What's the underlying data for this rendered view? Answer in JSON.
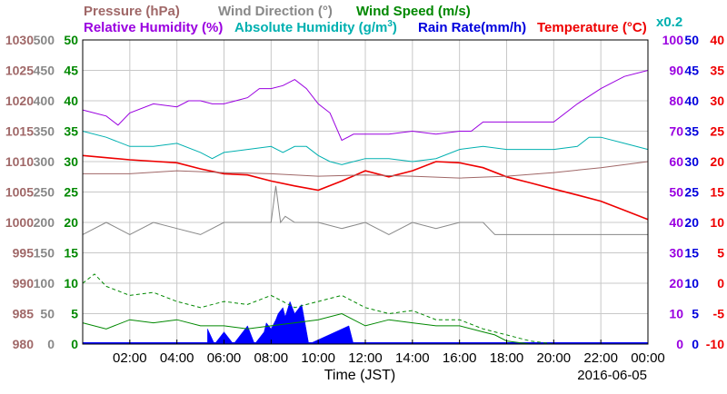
{
  "chart_data": {
    "type": "line",
    "xlabel": "Time (JST)",
    "date_label": "2016-06-05",
    "x_ticks": [
      "02:00",
      "04:00",
      "06:00",
      "08:00",
      "10:00",
      "12:00",
      "14:00",
      "16:00",
      "18:00",
      "20:00",
      "22:00",
      "00:00"
    ],
    "x_range_hours": [
      0,
      24
    ],
    "grid": true,
    "header": {
      "pressure": "Pressure (hPa)",
      "wind_direction": "Wind Direction (°)",
      "wind_speed": "Wind Speed (m/s)",
      "relative_humidity": "Relative Humidity (%)",
      "absolute_humidity_pre": "Absolute Humidity (g/m",
      "absolute_humidity_sup": "3",
      "absolute_humidity_post": ")",
      "rain_rate": "Rain Rate(mm/h)",
      "temperature": "Temperature (°C)",
      "scale_note": "x0.2"
    },
    "axes": {
      "pressure": {
        "color": "#a06868",
        "ticks": [
          "1030",
          "1025",
          "1020",
          "1015",
          "1010",
          "1005",
          "1000",
          "995",
          "990",
          "985",
          "980"
        ],
        "range": [
          980,
          1030
        ]
      },
      "wind_direction": {
        "color": "#888888",
        "ticks": [
          "500",
          "450",
          "400",
          "350",
          "300",
          "250",
          "200",
          "150",
          "100",
          "50",
          "0"
        ],
        "range": [
          0,
          500
        ]
      },
      "wind_speed": {
        "color": "#008800",
        "ticks": [
          "50",
          "45",
          "40",
          "35",
          "30",
          "25",
          "20",
          "15",
          "10",
          "5",
          "0"
        ],
        "range": [
          0,
          50
        ]
      },
      "relative_humidity": {
        "color": "#9a00e0",
        "ticks": [
          "100",
          "90",
          "80",
          "70",
          "60",
          "50",
          "40",
          "30",
          "20",
          "10",
          "0"
        ],
        "range": [
          0,
          100
        ]
      },
      "rain_rate": {
        "color": "#0000dd",
        "ticks": [
          "50",
          "45",
          "40",
          "35",
          "30",
          "25",
          "20",
          "15",
          "10",
          "5",
          "0"
        ],
        "range": [
          0,
          50
        ]
      },
      "temperature": {
        "color": "#ee0000",
        "ticks": [
          "40",
          "35",
          "30",
          "25",
          "20",
          "15",
          "10",
          "5",
          "0",
          "-5",
          "-10"
        ],
        "range": [
          -10,
          40
        ]
      }
    },
    "colors": {
      "pressure": "#a06868",
      "wind_direction": "#888888",
      "wind_speed": "#008800",
      "relative_humidity": "#9a00e0",
      "absolute_humidity": "#00b0b0",
      "rain_rate": "#0000ff",
      "temperature": "#ee0000"
    },
    "series": [
      {
        "name": "Relative Humidity (%)",
        "key": "relative_humidity",
        "style": "line",
        "x": [
          0.0,
          1.0,
          1.5,
          2.0,
          3.0,
          4.0,
          4.5,
          5.0,
          5.5,
          6.0,
          7.0,
          7.5,
          8.0,
          8.5,
          9.0,
          9.5,
          10.0,
          10.5,
          11.0,
          11.5,
          12.0,
          13.0,
          14.0,
          15.0,
          16.0,
          16.5,
          17.0,
          18.0,
          19.0,
          20.0,
          21.0,
          22.0,
          23.0,
          24.0
        ],
        "y": [
          77,
          75,
          72,
          76,
          79,
          78,
          80,
          80,
          79,
          79,
          81,
          84,
          84,
          85,
          87,
          84,
          79,
          76,
          67,
          69,
          69,
          69,
          70,
          69,
          70,
          70,
          73,
          73,
          73,
          73,
          79,
          84,
          88,
          90
        ]
      },
      {
        "name": "Absolute Humidity (g/m3)",
        "key": "absolute_humidity",
        "style": "line",
        "scale": 0.2,
        "scale_axis": "relative_humidity",
        "x": [
          0.0,
          1.0,
          2.0,
          3.0,
          4.0,
          5.0,
          5.5,
          6.0,
          7.0,
          8.0,
          8.5,
          9.0,
          9.5,
          10.0,
          10.5,
          11.0,
          12.0,
          13.0,
          14.0,
          15.0,
          16.0,
          17.0,
          18.0,
          19.0,
          20.0,
          21.0,
          21.5,
          22.0,
          23.0,
          24.0
        ],
        "y": [
          70,
          68,
          65,
          65,
          66,
          63,
          61,
          63,
          64,
          65,
          63,
          65,
          65,
          62,
          60,
          59,
          61,
          61,
          60,
          61,
          64,
          65,
          64,
          64,
          64,
          65,
          68,
          68,
          66,
          64
        ]
      },
      {
        "name": "Temperature (°C)",
        "key": "temperature",
        "style": "line",
        "x": [
          0.0,
          2.0,
          4.0,
          5.0,
          6.0,
          7.0,
          8.0,
          9.0,
          10.0,
          11.0,
          12.0,
          13.0,
          14.0,
          15.0,
          16.0,
          17.0,
          18.0,
          19.0,
          20.0,
          21.0,
          22.0,
          23.0,
          24.0
        ],
        "y": [
          21.0,
          20.3,
          19.8,
          18.8,
          18.0,
          17.8,
          16.8,
          16.0,
          15.3,
          16.8,
          18.5,
          17.5,
          18.5,
          20.0,
          19.8,
          19.0,
          17.5,
          16.5,
          15.5,
          14.5,
          13.5,
          12.0,
          10.5
        ]
      },
      {
        "name": "Pressure (hPa)",
        "key": "pressure",
        "style": "line",
        "x": [
          0.0,
          2.0,
          4.0,
          6.0,
          8.0,
          10.0,
          12.0,
          14.0,
          16.0,
          18.0,
          20.0,
          22.0,
          24.0
        ],
        "y": [
          1008.0,
          1008.0,
          1008.5,
          1008.2,
          1008.0,
          1007.6,
          1007.8,
          1007.6,
          1007.3,
          1007.6,
          1008.2,
          1009.0,
          1010.0
        ]
      },
      {
        "name": "Wind Direction (°)",
        "key": "wind_direction",
        "style": "line",
        "x": [
          0.0,
          1.0,
          2.0,
          3.0,
          4.0,
          5.0,
          6.0,
          7.0,
          8.0,
          8.2,
          8.4,
          8.6,
          9.0,
          10.0,
          11.0,
          12.0,
          13.0,
          14.0,
          15.0,
          16.0,
          17.0,
          17.5,
          18.0,
          20.0,
          22.0,
          24.0
        ],
        "y": [
          180,
          200,
          180,
          200,
          190,
          180,
          200,
          200,
          200,
          260,
          200,
          210,
          200,
          200,
          190,
          200,
          180,
          200,
          190,
          200,
          200,
          180,
          180,
          180,
          180,
          180
        ]
      },
      {
        "name": "Wind Speed (m/s)",
        "key": "wind_speed",
        "style": "line",
        "x": [
          0.0,
          1.0,
          2.0,
          3.0,
          4.0,
          5.0,
          6.0,
          7.0,
          8.0,
          9.0,
          10.0,
          11.0,
          12.0,
          13.0,
          14.0,
          15.0,
          16.0,
          17.0,
          17.5,
          18.0,
          19.0,
          24.0
        ],
        "y": [
          3.5,
          2.5,
          4.0,
          3.5,
          4.0,
          3.0,
          3.0,
          2.5,
          3.0,
          3.5,
          4.0,
          5.0,
          3.0,
          4.0,
          3.5,
          3.0,
          3.0,
          2.0,
          1.5,
          0.5,
          0.0,
          0.0
        ]
      },
      {
        "name": "Wind Speed gust (m/s)",
        "key": "wind_speed",
        "style": "dashed",
        "x": [
          0.0,
          0.5,
          1.0,
          2.0,
          3.0,
          4.0,
          5.0,
          6.0,
          7.0,
          8.0,
          9.0,
          10.0,
          11.0,
          12.0,
          13.0,
          14.0,
          15.0,
          16.0,
          17.0,
          18.0,
          19.0,
          20.0,
          24.0
        ],
        "y": [
          10.0,
          11.5,
          9.5,
          8.0,
          8.5,
          7.0,
          6.0,
          7.0,
          6.5,
          8.0,
          6.0,
          7.0,
          8.0,
          6.0,
          5.0,
          5.5,
          4.0,
          4.0,
          2.5,
          1.5,
          0.5,
          0.0,
          0.0
        ]
      }
    ],
    "rain_rate": {
      "name": "Rain Rate(mm/h)",
      "key": "rain_rate",
      "x": [
        5.3,
        5.6,
        6.0,
        6.4,
        7.0,
        7.3,
        7.7,
        7.8,
        8.0,
        8.2,
        8.3,
        8.5,
        8.6,
        8.8,
        9.0,
        9.3,
        9.6,
        11.3,
        11.5
      ],
      "y": [
        2.5,
        0,
        2.0,
        0,
        3.0,
        0,
        2.0,
        3.5,
        2.5,
        4.0,
        5.0,
        6.0,
        4.5,
        7.0,
        5.0,
        6.5,
        0,
        3.0,
        0
      ]
    }
  }
}
